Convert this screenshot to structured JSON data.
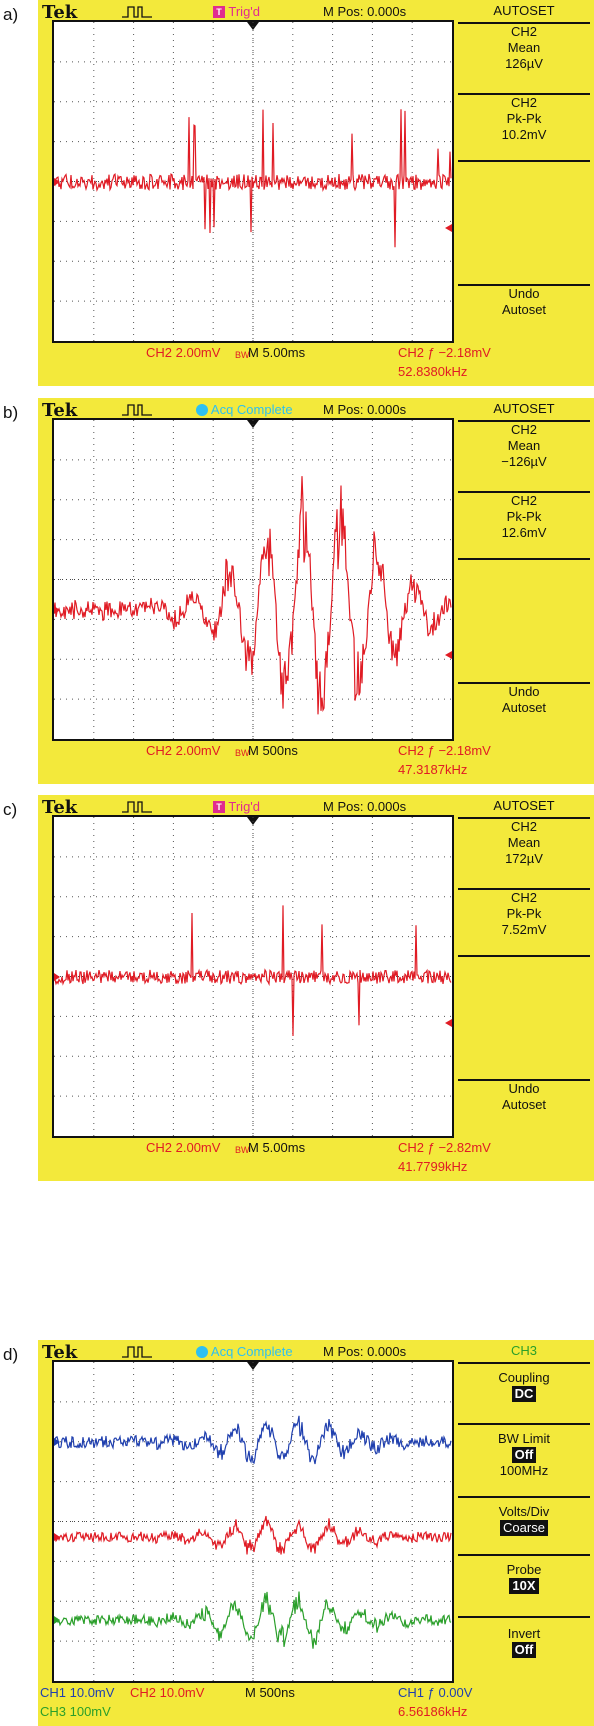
{
  "panels": [
    {
      "label": "a)",
      "brand": "Tek",
      "status": {
        "icon": "T",
        "text": "Trig'd",
        "kind": "trig"
      },
      "mpos": "M Pos: 0.000s",
      "menu_title": "AUTOSET",
      "menu": [
        {
          "lines": [
            "CH2",
            "Mean",
            "126µV"
          ]
        },
        {
          "lines": [
            "CH2",
            "Pk-Pk",
            "10.2mV"
          ]
        },
        {
          "lines": [
            "Undo",
            "Autoset"
          ]
        }
      ],
      "bottom_left": "CH2  2.00mV",
      "bottom_bw": "BW",
      "bottom_time": "M 5.00ms",
      "trigger": "CH2 ƒ  −2.18mV",
      "freq": "52.8380kHz"
    },
    {
      "label": "b)",
      "brand": "Tek",
      "status": {
        "icon": "",
        "text": "Acq Complete",
        "kind": "acq"
      },
      "mpos": "M Pos: 0.000s",
      "menu_title": "AUTOSET",
      "menu": [
        {
          "lines": [
            "CH2",
            "Mean",
            "−126µV"
          ]
        },
        {
          "lines": [
            "CH2",
            "Pk-Pk",
            "12.6mV"
          ]
        },
        {
          "lines": [
            "Undo",
            "Autoset"
          ]
        }
      ],
      "bottom_left": "CH2  2.00mV",
      "bottom_bw": "BW",
      "bottom_time": "M 500ns",
      "trigger": "CH2 ƒ  −2.18mV",
      "freq": "47.3187kHz"
    },
    {
      "label": "c)",
      "brand": "Tek",
      "status": {
        "icon": "T",
        "text": "Trig'd",
        "kind": "trig"
      },
      "mpos": "M Pos: 0.000s",
      "menu_title": "AUTOSET",
      "menu": [
        {
          "lines": [
            "CH2",
            "Mean",
            "172µV"
          ]
        },
        {
          "lines": [
            "CH2",
            "Pk-Pk",
            "7.52mV"
          ]
        },
        {
          "lines": [
            "Undo",
            "Autoset"
          ]
        }
      ],
      "bottom_left": "CH2  2.00mV",
      "bottom_bw": "BW",
      "bottom_time": "M 5.00ms",
      "trigger": "CH2 ƒ  −2.82mV",
      "freq": "41.7799kHz"
    }
  ],
  "panel_d": {
    "label": "d)",
    "brand": "Tek",
    "status": {
      "text": "Acq Complete"
    },
    "mpos": "M Pos: 0.000s",
    "menu_title": "CH3",
    "coupling_label": "Coupling",
    "coupling_value": "DC",
    "bw_label": "BW Limit",
    "bw_value": "Off",
    "bw_freq": "100MHz",
    "vdiv_label": "Volts/Div",
    "vdiv_value": "Coarse",
    "probe_label": "Probe",
    "probe_value": "10X",
    "invert_label": "Invert",
    "invert_value": "Off",
    "ch1": "CH1  10.0mV",
    "ch2": "CH2  10.0mV",
    "time": "M 500ns",
    "trigger": "CH1 ƒ  0.00V",
    "ch3": "CH3  100mV",
    "freq": "6.56186kHz"
  },
  "colors": {
    "scope_bg": "#f3e93b",
    "ch1": "#1f3fae",
    "ch2": "#e01b24",
    "ch3": "#2a9f2a",
    "trig_badge": "#e02c8f",
    "acq_badge": "#2ec0f0"
  },
  "icons": [
    "pulse-icon",
    "trigger-marker-icon",
    "channel-marker-icon",
    "trigger-level-arrow-icon"
  ]
}
